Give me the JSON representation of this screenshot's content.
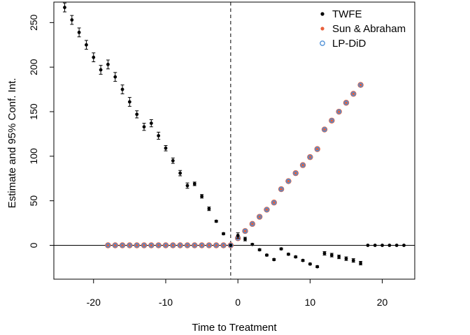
{
  "chart_data": {
    "type": "scatter",
    "xlabel": "Time to Treatment",
    "ylabel": "Estimate and 95% Conf. Int.",
    "xlim": [
      -25.5,
      24.5
    ],
    "ylim": [
      -38,
      273
    ],
    "x_ticks": [
      -20,
      -10,
      0,
      10,
      20
    ],
    "y_ticks": [
      0,
      50,
      100,
      150,
      200,
      250
    ],
    "x_tick_labels": [
      "-20",
      "-10",
      "0",
      "10",
      "20"
    ],
    "y_tick_labels": [
      "0",
      "50",
      "100",
      "150",
      "200",
      "250"
    ],
    "grid": false,
    "reference_lines": {
      "horizontal_y": 0,
      "vertical_dashed_x": -1
    },
    "legend": {
      "position": "top-right",
      "entries": [
        "TWFE",
        "Sun & Abraham",
        "LP-DiD"
      ]
    },
    "colors": {
      "twfe": "#000000",
      "sun_abraham": "#e8603c",
      "lpdid": "#4d8fd6"
    },
    "series": [
      {
        "name": "TWFE",
        "x": [
          -24,
          -23,
          -22,
          -21,
          -20,
          -19,
          -18,
          -17,
          -16,
          -15,
          -14,
          -13,
          -12,
          -11,
          -10,
          -9,
          -8,
          -7,
          -6,
          -5,
          -4,
          -3,
          -2,
          -1,
          0,
          1,
          2,
          3,
          4,
          5,
          6,
          7,
          8,
          9,
          10,
          11,
          12,
          13,
          14,
          15,
          16,
          17,
          18,
          19,
          20,
          21,
          22,
          23
        ],
        "y": [
          267,
          253,
          239,
          225,
          211,
          197,
          203,
          189,
          175,
          161,
          147,
          133,
          137,
          123,
          109,
          95,
          81,
          67,
          69,
          55,
          41,
          27,
          13,
          0,
          11,
          7,
          1,
          -5,
          -11,
          -16,
          -4,
          -10,
          -13,
          -17,
          -21,
          -24,
          -9,
          -11,
          -13,
          -15,
          -17,
          -20,
          0,
          0,
          0,
          0,
          0,
          0
        ],
        "ci_half": [
          5,
          5,
          5,
          5,
          5,
          5,
          5,
          5,
          5,
          5,
          4,
          4,
          4,
          4,
          3,
          3,
          3,
          3,
          2,
          2,
          2,
          1,
          1,
          0,
          3,
          2,
          1,
          1,
          1,
          1,
          1,
          1,
          1,
          1,
          1,
          1,
          2,
          2,
          2,
          2,
          2,
          2,
          0,
          0,
          0,
          0,
          0,
          0
        ]
      },
      {
        "name": "Sun & Abraham",
        "x": [
          -18,
          -17,
          -16,
          -15,
          -14,
          -13,
          -12,
          -11,
          -10,
          -9,
          -8,
          -7,
          -6,
          -5,
          -4,
          -3,
          -2,
          -1,
          0,
          1,
          2,
          3,
          4,
          5,
          6,
          7,
          8,
          9,
          10,
          11,
          12,
          13,
          14,
          15,
          16,
          17
        ],
        "y": [
          0,
          0,
          0,
          0,
          0,
          0,
          0,
          0,
          0,
          0,
          0,
          0,
          0,
          0,
          0,
          0,
          0,
          0,
          8,
          16,
          24,
          32,
          40,
          48,
          63,
          72,
          81,
          90,
          99,
          108,
          130,
          140,
          150,
          160,
          170,
          180
        ]
      },
      {
        "name": "LP-DiD",
        "x": [
          -18,
          -17,
          -16,
          -15,
          -14,
          -13,
          -12,
          -11,
          -10,
          -9,
          -8,
          -7,
          -6,
          -5,
          -4,
          -3,
          -2,
          -1,
          0,
          1,
          2,
          3,
          4,
          5,
          6,
          7,
          8,
          9,
          10,
          11,
          12,
          13,
          14,
          15,
          16,
          17
        ],
        "y": [
          0,
          0,
          0,
          0,
          0,
          0,
          0,
          0,
          0,
          0,
          0,
          0,
          0,
          0,
          0,
          0,
          0,
          0,
          8,
          16,
          24,
          32,
          40,
          48,
          63,
          72,
          81,
          90,
          99,
          108,
          130,
          140,
          150,
          160,
          170,
          180
        ]
      }
    ]
  }
}
